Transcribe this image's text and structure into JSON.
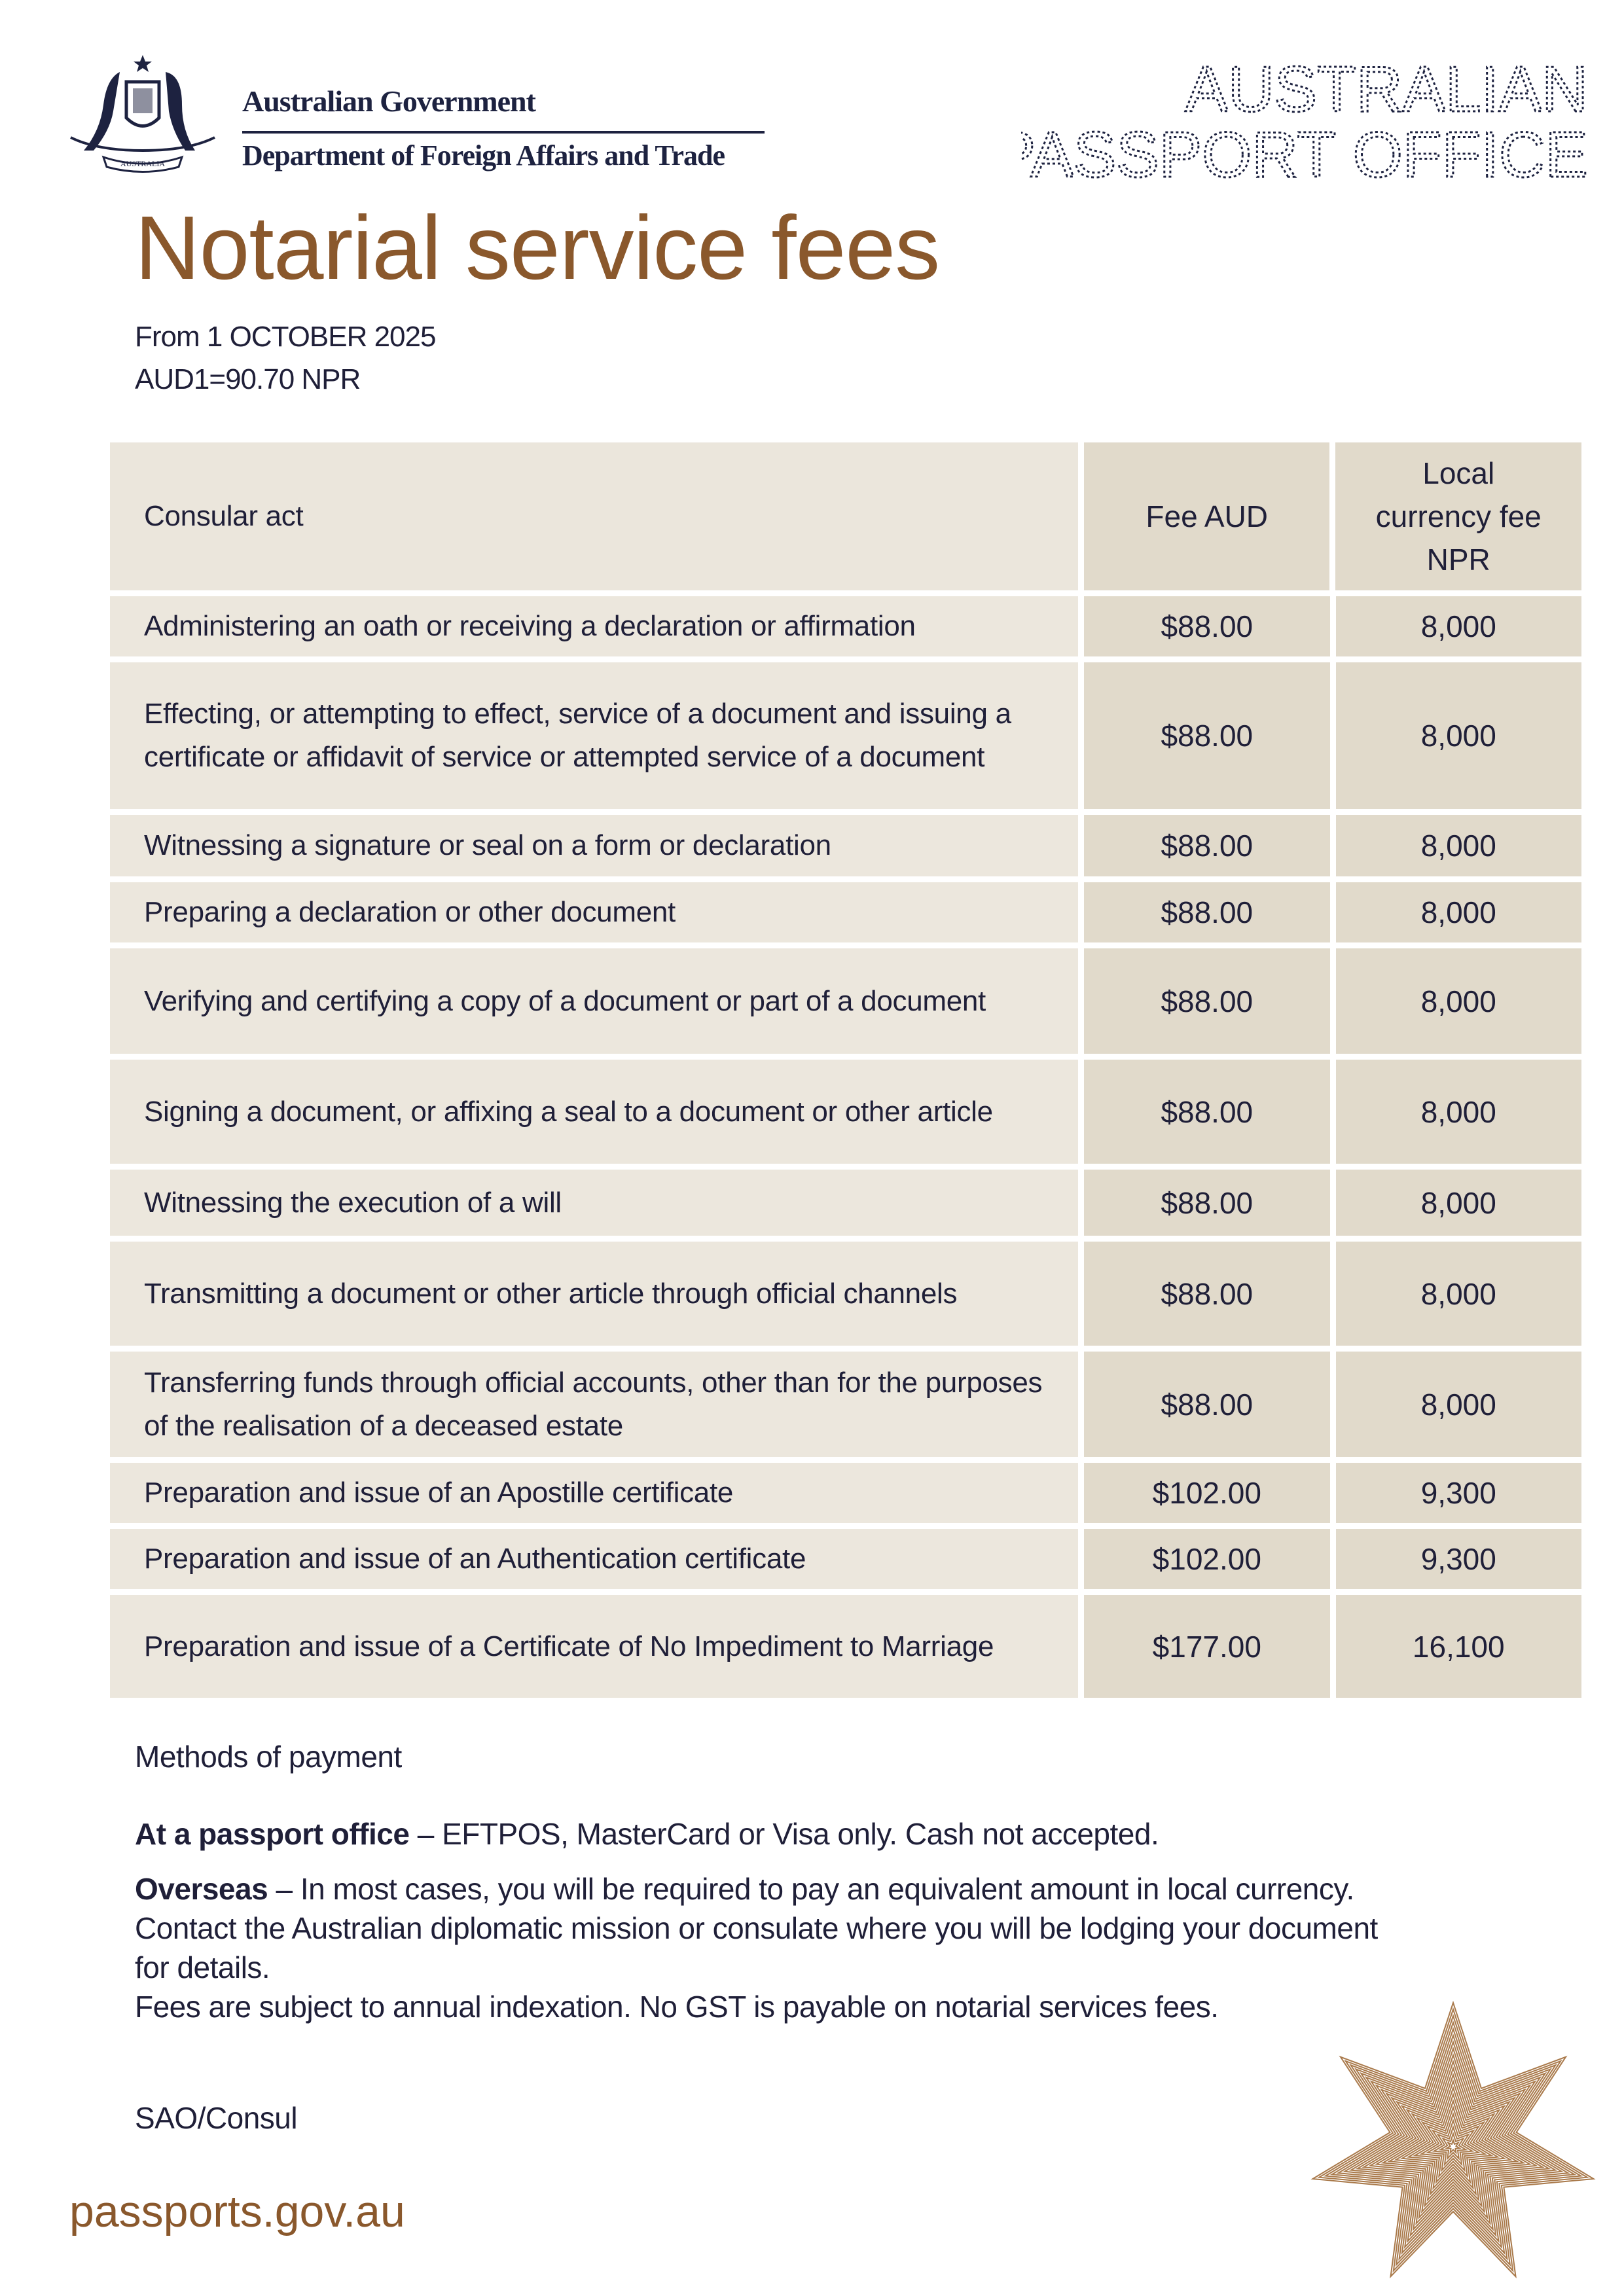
{
  "header": {
    "gov_line1": "Australian Government",
    "gov_line2": "Department of Foreign Affairs and Trade",
    "crest_text": "AUSTRALIA",
    "office_line1": "AUSTRALIAN",
    "office_line2": "PASSPORT OFFICE"
  },
  "title": "Notarial service fees",
  "effective": "From 1 OCTOBER 2025",
  "rate": "AUD1=90.70 NPR",
  "table": {
    "headers": [
      "Consular act",
      "Fee AUD",
      "Local currency fee NPR"
    ],
    "rows": [
      {
        "act": "Administering an oath or receiving a declaration or affirmation",
        "aud": "$88.00",
        "npr": "8,000"
      },
      {
        "act": "Effecting, or attempting to effect, service of a document and issuing a certificate or affidavit of service or attempted service of a document",
        "aud": "$88.00",
        "npr": "8,000"
      },
      {
        "act": "Witnessing a signature or seal on a form or declaration",
        "aud": "$88.00",
        "npr": "8,000"
      },
      {
        "act": "Preparing a declaration or other document",
        "aud": "$88.00",
        "npr": "8,000"
      },
      {
        "act": "Verifying and certifying a copy of a document or part of a document",
        "aud": "$88.00",
        "npr": "8,000"
      },
      {
        "act": "Signing a document, or affixing a seal to a document or other article",
        "aud": "$88.00",
        "npr": "8,000"
      },
      {
        "act": "Witnessing the execution of a will",
        "aud": "$88.00",
        "npr": "8,000"
      },
      {
        "act": "Transmitting a document or other article through official channels",
        "aud": "$88.00",
        "npr": "8,000"
      },
      {
        "act": "Transferring funds through official accounts, other than for the purposes of the realisation of a deceased estate",
        "aud": "$88.00",
        "npr": "8,000"
      },
      {
        "act": "Preparation and issue of an Apostille certificate",
        "aud": "$102.00",
        "npr": "9,300"
      },
      {
        "act": "Preparation and issue of an Authentication certificate",
        "aud": "$102.00",
        "npr": "9,300"
      },
      {
        "act": "Preparation and issue of a Certificate of No Impediment to Marriage",
        "aud": "$177.00",
        "npr": "16,100"
      }
    ]
  },
  "payment": {
    "heading": "Methods of payment",
    "office_label": "At a passport office",
    "office_text": " – EFTPOS, MasterCard or Visa only. Cash not accepted.",
    "overseas_label": "Overseas",
    "overseas_text": " – In most cases, you will be required to pay an equivalent amount in local currency. Contact the Australian diplomatic mission or consulate where you will be lodging your document for details.",
    "note": "Fees are subject to annual indexation. No GST is payable on notarial services fees."
  },
  "signature": "SAO/Consul",
  "website": "passports.gov.au",
  "colors": {
    "accent": "#8a582c",
    "navy": "#1d2240",
    "table_light": "#ece7dd",
    "table_dark": "#e1dacb"
  }
}
